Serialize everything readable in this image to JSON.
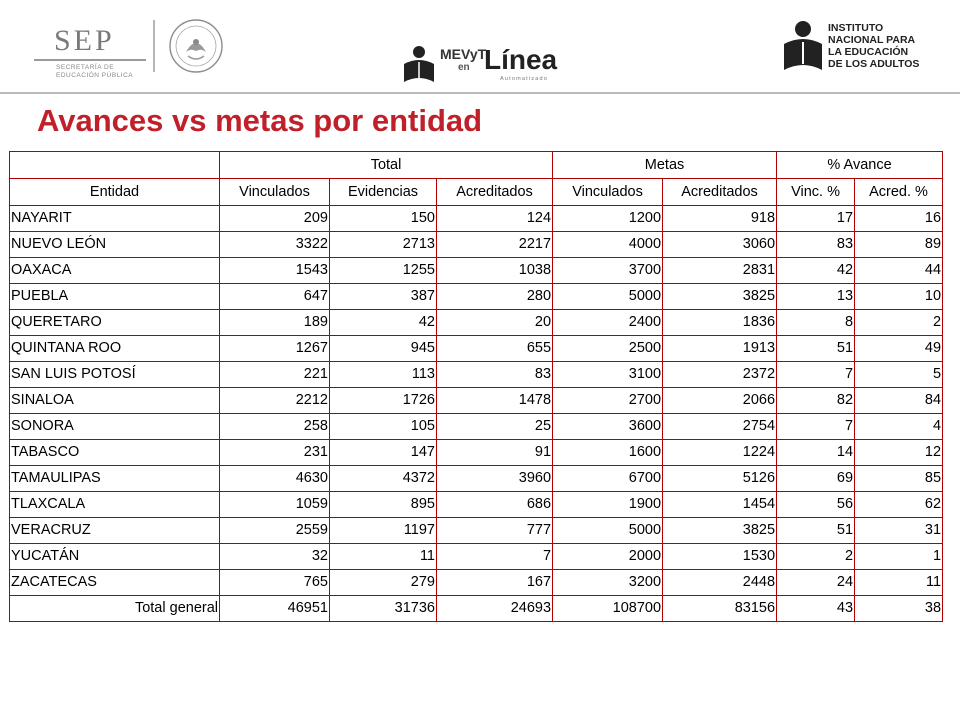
{
  "header": {
    "sep_logo": {
      "name": "SEP",
      "subtitle_line1": "SECRETARÍA DE",
      "subtitle_line2": "EDUCACIÓN PÚBLICA"
    },
    "mevyt_logo": {
      "word": "MEVyT",
      "en": "en",
      "linea": "Línea",
      "tagline": "Automatizado"
    },
    "inea_logo": {
      "lines": [
        "INSTITUTO",
        "NACIONAL PARA",
        "LA EDUCACIÓN",
        "DE LOS ADULTOS"
      ]
    }
  },
  "title": "Avances vs metas por entidad",
  "table": {
    "group_headers": [
      "",
      "Total",
      "Metas",
      "% Avance"
    ],
    "columns": [
      "Entidad",
      "Vinculados",
      "Evidencias",
      "Acreditados",
      "Vinculados",
      "Acreditados",
      "Vinc. %",
      "Acred. %"
    ],
    "rows": [
      [
        "NAYARIT",
        "209",
        "150",
        "124",
        "1200",
        "918",
        "17",
        "16"
      ],
      [
        "NUEVO LEÓN",
        "3322",
        "2713",
        "2217",
        "4000",
        "3060",
        "83",
        "89"
      ],
      [
        "OAXACA",
        "1543",
        "1255",
        "1038",
        "3700",
        "2831",
        "42",
        "44"
      ],
      [
        "PUEBLA",
        "647",
        "387",
        "280",
        "5000",
        "3825",
        "13",
        "10"
      ],
      [
        "QUERETARO",
        "189",
        "42",
        "20",
        "2400",
        "1836",
        "8",
        "2"
      ],
      [
        "QUINTANA ROO",
        "1267",
        "945",
        "655",
        "2500",
        "1913",
        "51",
        "49"
      ],
      [
        "SAN LUIS POTOSÍ",
        "221",
        "113",
        "83",
        "3100",
        "2372",
        "7",
        "5"
      ],
      [
        "SINALOA",
        "2212",
        "1726",
        "1478",
        "2700",
        "2066",
        "82",
        "84"
      ],
      [
        "SONORA",
        "258",
        "105",
        "25",
        "3600",
        "2754",
        "7",
        "4"
      ],
      [
        "TABASCO",
        "231",
        "147",
        "91",
        "1600",
        "1224",
        "14",
        "12"
      ],
      [
        "TAMAULIPAS",
        "4630",
        "4372",
        "3960",
        "6700",
        "5126",
        "69",
        "85"
      ],
      [
        "TLAXCALA",
        "1059",
        "895",
        "686",
        "1900",
        "1454",
        "56",
        "62"
      ],
      [
        "VERACRUZ",
        "2559",
        "1197",
        "777",
        "5000",
        "3825",
        "51",
        "31"
      ],
      [
        "YUCATÁN",
        "32",
        "11",
        "7",
        "2000",
        "1530",
        "2",
        "1"
      ],
      [
        "ZACATECAS",
        "765",
        "279",
        "167",
        "3200",
        "2448",
        "24",
        "11"
      ]
    ],
    "total_row": [
      "Total general",
      "46951",
      "31736",
      "24693",
      "108700",
      "83156",
      "43",
      "38"
    ]
  },
  "colors": {
    "title": "#c0202a",
    "table_border": "#b30000"
  }
}
